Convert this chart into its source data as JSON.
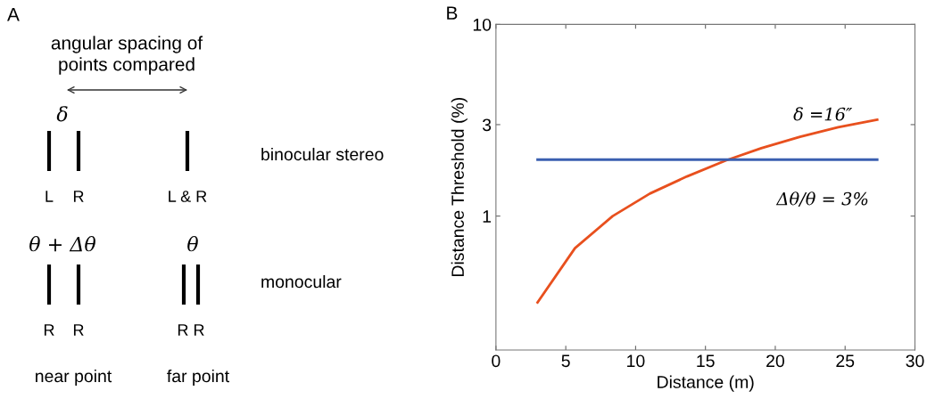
{
  "chart_data": [
    {
      "type": "other",
      "title": "A",
      "annotations": [
        "angular spacing of\npoints compared",
        "δ",
        "L",
        "R",
        "L & R",
        "binocular stereo",
        "θ + Δθ",
        "θ",
        "R",
        "R",
        "R R",
        "monocular",
        "near point",
        "far point"
      ]
    },
    {
      "type": "line",
      "title": "B",
      "xlabel": "Distance (m)",
      "ylabel": "Distance Threshold (%)",
      "log": "y",
      "xlim": [
        0,
        30
      ],
      "xticks": [
        0,
        5,
        10,
        15,
        20,
        25,
        30
      ],
      "ylim": [
        0.2,
        10
      ],
      "yticks": [
        1,
        3,
        10
      ],
      "grid": false,
      "series": [
        {
          "color": "#e8501e",
          "x": [
            2.98,
            5.66,
            8.36,
            11.02,
            13.68,
            16.45,
            19.0,
            21.77,
            24.5,
            27.3
          ],
          "values": [
            0.354,
            0.68,
            1.0,
            1.31,
            1.61,
            1.95,
            2.26,
            2.59,
            2.91,
            3.18
          ]
        },
        {
          "color": "#3a5fb0",
          "x": [
            2.98,
            27.3
          ],
          "values": [
            1.97,
            1.97
          ]
        }
      ],
      "annotations": [
        "δ =16″",
        "Δθ/θ = 3%"
      ]
    }
  ]
}
